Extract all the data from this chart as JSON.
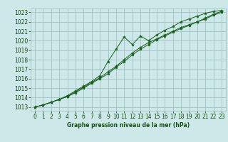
{
  "title": "Graphe pression niveau de la mer (hPa)",
  "x_hours": [
    0,
    1,
    2,
    3,
    4,
    5,
    6,
    7,
    8,
    9,
    10,
    11,
    12,
    13,
    14,
    15,
    16,
    17,
    18,
    19,
    20,
    21,
    22,
    23
  ],
  "pressure_line1": [
    1013.0,
    1013.2,
    1013.5,
    1013.8,
    1014.1,
    1014.6,
    1015.1,
    1015.6,
    1016.1,
    1016.7,
    1017.3,
    1018.0,
    1018.7,
    1019.3,
    1019.8,
    1020.2,
    1020.6,
    1021.0,
    1021.4,
    1021.7,
    1022.0,
    1022.3,
    1022.7,
    1023.0
  ],
  "pressure_line2": [
    1013.0,
    1013.2,
    1013.5,
    1013.8,
    1014.1,
    1014.5,
    1015.0,
    1015.5,
    1016.0,
    1016.5,
    1017.2,
    1017.8,
    1018.5,
    1019.1,
    1019.6,
    1020.1,
    1020.5,
    1020.9,
    1021.3,
    1021.6,
    1022.0,
    1022.4,
    1022.8,
    1023.1
  ],
  "pressure_zigzag": [
    1013.0,
    1013.2,
    1013.5,
    1013.8,
    1014.2,
    1014.7,
    1015.2,
    1015.7,
    1016.3,
    1017.8,
    1019.1,
    1020.4,
    1019.6,
    1020.5,
    1020.0,
    1020.6,
    1021.1,
    1021.5,
    1022.0,
    1022.3,
    1022.6,
    1022.9,
    1023.1,
    1023.2
  ],
  "ylim_min": 1012.6,
  "ylim_max": 1023.4,
  "yticks": [
    1013,
    1014,
    1015,
    1016,
    1017,
    1018,
    1019,
    1020,
    1021,
    1022,
    1023
  ],
  "bg_color": "#cce8e8",
  "line_color": "#1a5c1a",
  "grid_color": "#99bbbb",
  "marker": "*",
  "marker_size": 3,
  "font_color": "#1a4a1a",
  "label_fontsize": 5.5,
  "tick_fontsize": 5.5
}
